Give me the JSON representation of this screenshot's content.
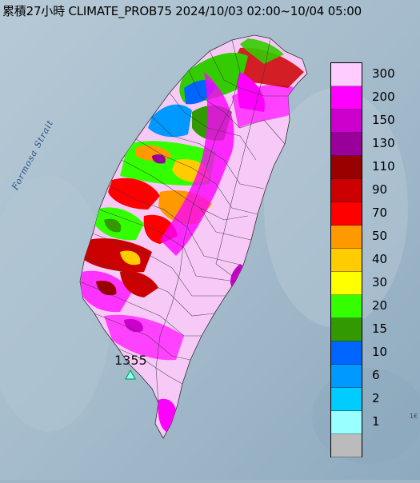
{
  "map": {
    "title": "累積27小時 CLIMATE_PROB75 2024/10/03 02:00~10/04 05:00",
    "strait_label": "Formosa Strait",
    "max_value_label": "1355",
    "edge_label": "1€",
    "colors": {
      "ocean": "#9fb6c6",
      "land_low": "#f7c9f7"
    }
  },
  "legend": {
    "items": [
      {
        "label": "300",
        "color": "#ffccff"
      },
      {
        "label": "200",
        "color": "#ff00ff"
      },
      {
        "label": "150",
        "color": "#cc00cc"
      },
      {
        "label": "130",
        "color": "#990099"
      },
      {
        "label": "110",
        "color": "#990000"
      },
      {
        "label": "90",
        "color": "#cc0000"
      },
      {
        "label": "70",
        "color": "#ff0000"
      },
      {
        "label": "50",
        "color": "#ff9900"
      },
      {
        "label": "40",
        "color": "#ffcc00"
      },
      {
        "label": "30",
        "color": "#ffff00"
      },
      {
        "label": "20",
        "color": "#33ff00"
      },
      {
        "label": "15",
        "color": "#339900"
      },
      {
        "label": "10",
        "color": "#0066ff"
      },
      {
        "label": "6",
        "color": "#0099ff"
      },
      {
        "label": "2",
        "color": "#00ccff"
      },
      {
        "label": "1",
        "color": "#99ffff"
      },
      {
        "label": "",
        "color": "#bbbbbb"
      }
    ]
  }
}
